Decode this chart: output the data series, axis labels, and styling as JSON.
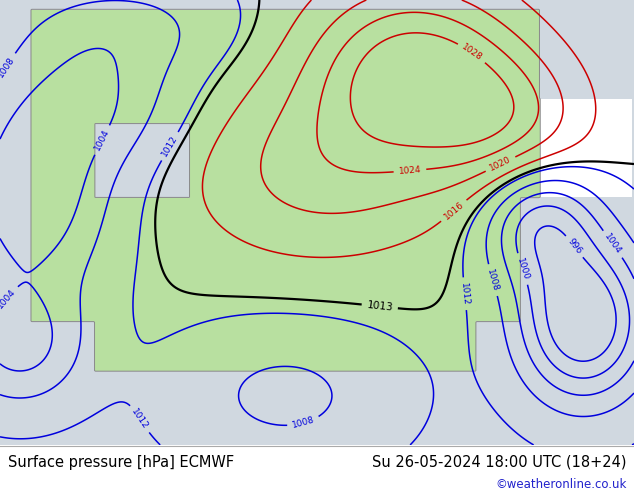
{
  "title_left": "Surface pressure [hPa] ECMWF",
  "title_right": "Su 26-05-2024 18:00 UTC (18+24)",
  "credit": "©weatheronline.co.uk",
  "bg_color": "#ffffff",
  "land_color": "#b8e0a0",
  "ocean_color": "#d0d8e0",
  "title_fontsize": 10.5,
  "credit_fontsize": 8.5,
  "credit_color": "#2222cc",
  "title_color": "#000000",
  "fig_width": 6.34,
  "fig_height": 4.9,
  "dpi": 100
}
